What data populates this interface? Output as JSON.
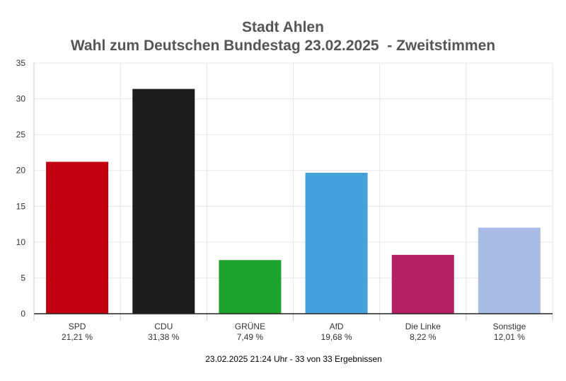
{
  "title_line1": "Stadt Ahlen",
  "title_line2": "Wahl zum Deutschen Bundestag 23.02.2025  - Zweitstimmen",
  "footer": "23.02.2025 21:24 Uhr - 33 von 33 Ergebnissen",
  "chart_data": {
    "type": "bar",
    "title": "Stadt Ahlen — Wahl zum Deutschen Bundestag 23.02.2025 - Zweitstimmen",
    "xlabel": "",
    "ylabel": "",
    "ylim": [
      0,
      35
    ],
    "yticks": [
      0,
      5,
      10,
      15,
      20,
      25,
      30,
      35
    ],
    "grid": true,
    "legend": "none",
    "categories": [
      "SPD",
      "CDU",
      "GRÜNE",
      "AfD",
      "Die Linke",
      "Sonstige"
    ],
    "values": [
      21.21,
      31.38,
      7.49,
      19.68,
      8.22,
      12.01
    ],
    "value_labels": [
      "21,21 %",
      "31,38 %",
      "7,49 %",
      "19,68 %",
      "8,22 %",
      "12,01 %"
    ],
    "colors": [
      "#c00010",
      "#1c1c1c",
      "#1ea22e",
      "#46a0dc",
      "#b51f66",
      "#a9bce5"
    ]
  }
}
